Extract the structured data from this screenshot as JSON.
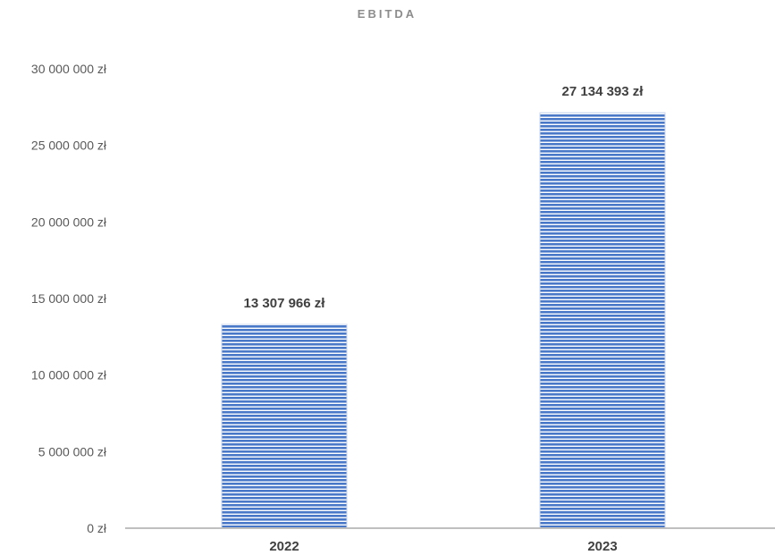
{
  "chart_data": {
    "type": "bar",
    "title": "EBITDA",
    "xlabel": "",
    "ylabel": "",
    "categories": [
      "2022",
      "2023"
    ],
    "series": [
      {
        "values": [
          13307966,
          27134393
        ]
      }
    ],
    "data_labels": [
      "13 307 966 zł",
      "27 134 393 zł"
    ],
    "ylim": [
      0,
      30000000
    ],
    "yticks": [
      0,
      5000000,
      10000000,
      15000000,
      20000000,
      25000000,
      30000000
    ],
    "ytick_labels": [
      "0 zł",
      "5 000 000 zł",
      "10 000 000 zł",
      "15 000 000 zł",
      "20 000 000 zł",
      "25 000 000 zł",
      "30 000 000 zł"
    ],
    "grid": false,
    "legend": "none",
    "colors": {
      "bar_fill": "#4a78c8",
      "bar_stripe": "#ffffff",
      "axis": "#bfbfbf"
    }
  }
}
